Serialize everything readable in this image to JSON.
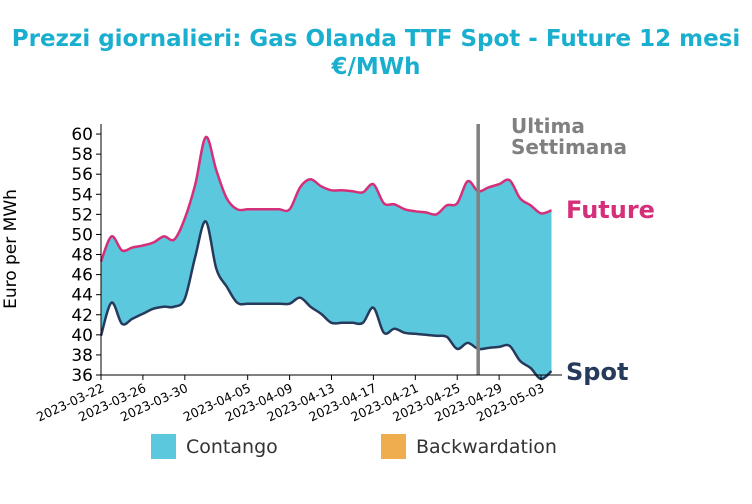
{
  "chart_data": {
    "type": "area",
    "title_line1": "Prezzi giornalieri: Gas Olanda TTF Spot - Future 12 mesi",
    "title_line2": "€/MWh",
    "ylabel": "Euro per MWh",
    "xlabel": "",
    "ylim": [
      36,
      61
    ],
    "yticks": [
      36,
      38,
      40,
      42,
      44,
      46,
      48,
      50,
      52,
      54,
      56,
      58,
      60
    ],
    "xlim": [
      "2023-03-22",
      "2023-05-05"
    ],
    "xticks": [
      "2023-03-22",
      "2023-03-26",
      "2023-03-30",
      "2023-04-05",
      "2023-04-09",
      "2023-04-13",
      "2023-04-17",
      "2023-04-21",
      "2023-04-25",
      "2023-04-29",
      "2023-05-03"
    ],
    "grid": false,
    "series": [
      {
        "name": "Future",
        "color": "#d62f7a",
        "points": [
          [
            "2023-03-22",
            47.3
          ],
          [
            "2023-03-23",
            49.8
          ],
          [
            "2023-03-24",
            48.4
          ],
          [
            "2023-03-25",
            48.7
          ],
          [
            "2023-03-26",
            48.9
          ],
          [
            "2023-03-27",
            49.2
          ],
          [
            "2023-03-28",
            49.8
          ],
          [
            "2023-03-29",
            49.5
          ],
          [
            "2023-03-30",
            51.6
          ],
          [
            "2023-03-31",
            55.0
          ],
          [
            "2023-04-01",
            59.7
          ],
          [
            "2023-04-02",
            56.4
          ],
          [
            "2023-04-03",
            53.6
          ],
          [
            "2023-04-04",
            52.5
          ],
          [
            "2023-04-05",
            52.5
          ],
          [
            "2023-04-06",
            52.5
          ],
          [
            "2023-04-07",
            52.5
          ],
          [
            "2023-04-08",
            52.5
          ],
          [
            "2023-04-09",
            52.5
          ],
          [
            "2023-04-10",
            54.7
          ],
          [
            "2023-04-11",
            55.5
          ],
          [
            "2023-04-12",
            54.8
          ],
          [
            "2023-04-13",
            54.4
          ],
          [
            "2023-04-14",
            54.4
          ],
          [
            "2023-04-15",
            54.3
          ],
          [
            "2023-04-16",
            54.2
          ],
          [
            "2023-04-17",
            55.0
          ],
          [
            "2023-04-18",
            53.1
          ],
          [
            "2023-04-19",
            53.0
          ],
          [
            "2023-04-20",
            52.5
          ],
          [
            "2023-04-21",
            52.3
          ],
          [
            "2023-04-22",
            52.2
          ],
          [
            "2023-04-23",
            52.0
          ],
          [
            "2023-04-24",
            52.9
          ],
          [
            "2023-04-25",
            53.1
          ],
          [
            "2023-04-26",
            55.3
          ],
          [
            "2023-04-27",
            54.3
          ],
          [
            "2023-04-28",
            54.7
          ],
          [
            "2023-04-29",
            55.0
          ],
          [
            "2023-04-30",
            55.4
          ],
          [
            "2023-05-01",
            53.6
          ],
          [
            "2023-05-02",
            52.9
          ],
          [
            "2023-05-03",
            52.1
          ],
          [
            "2023-05-04",
            52.4
          ]
        ]
      },
      {
        "name": "Spot",
        "color": "#263a5c",
        "points": [
          [
            "2023-03-22",
            39.9
          ],
          [
            "2023-03-23",
            43.2
          ],
          [
            "2023-03-24",
            41.1
          ],
          [
            "2023-03-25",
            41.6
          ],
          [
            "2023-03-26",
            42.1
          ],
          [
            "2023-03-27",
            42.6
          ],
          [
            "2023-03-28",
            42.8
          ],
          [
            "2023-03-29",
            42.8
          ],
          [
            "2023-03-30",
            43.6
          ],
          [
            "2023-03-31",
            47.8
          ],
          [
            "2023-04-01",
            51.3
          ],
          [
            "2023-04-02",
            46.6
          ],
          [
            "2023-04-03",
            44.8
          ],
          [
            "2023-04-04",
            43.2
          ],
          [
            "2023-04-05",
            43.1
          ],
          [
            "2023-04-06",
            43.1
          ],
          [
            "2023-04-07",
            43.1
          ],
          [
            "2023-04-08",
            43.1
          ],
          [
            "2023-04-09",
            43.1
          ],
          [
            "2023-04-10",
            43.7
          ],
          [
            "2023-04-11",
            42.8
          ],
          [
            "2023-04-12",
            42.1
          ],
          [
            "2023-04-13",
            41.2
          ],
          [
            "2023-04-14",
            41.2
          ],
          [
            "2023-04-15",
            41.2
          ],
          [
            "2023-04-16",
            41.2
          ],
          [
            "2023-04-17",
            42.7
          ],
          [
            "2023-04-18",
            40.2
          ],
          [
            "2023-04-19",
            40.6
          ],
          [
            "2023-04-20",
            40.2
          ],
          [
            "2023-04-21",
            40.1
          ],
          [
            "2023-04-22",
            40.0
          ],
          [
            "2023-04-23",
            39.9
          ],
          [
            "2023-04-24",
            39.8
          ],
          [
            "2023-04-25",
            38.6
          ],
          [
            "2023-04-26",
            39.2
          ],
          [
            "2023-04-27",
            38.6
          ],
          [
            "2023-04-28",
            38.7
          ],
          [
            "2023-04-29",
            38.8
          ],
          [
            "2023-04-30",
            38.9
          ],
          [
            "2023-05-01",
            37.4
          ],
          [
            "2023-05-02",
            36.7
          ],
          [
            "2023-05-03",
            35.6
          ],
          [
            "2023-05-04",
            36.4
          ]
        ]
      }
    ],
    "vline": {
      "date": "2023-04-27",
      "label_line1": "Ultima",
      "label_line2": "Settimana",
      "color": "#808080"
    },
    "legend": [
      {
        "label": "Contango",
        "color": "#5bc8de"
      },
      {
        "label": "Backwardation",
        "color": "#f0ad4e"
      }
    ],
    "legend_position": "bottom-center",
    "series_labels": {
      "future": "Future",
      "spot": "Spot"
    }
  }
}
